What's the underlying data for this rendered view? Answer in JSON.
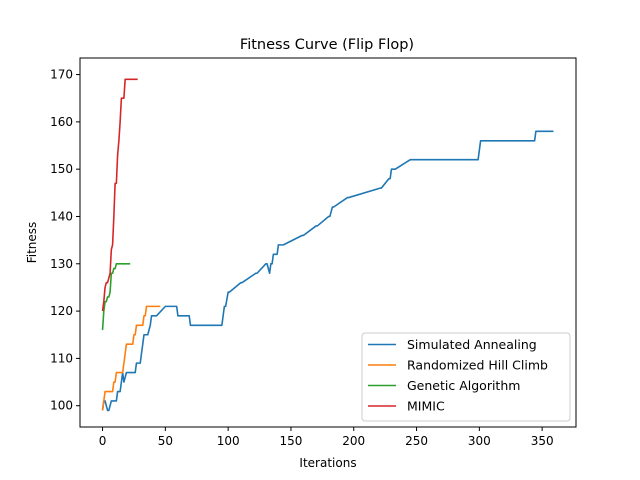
{
  "chart_data": {
    "type": "line",
    "title": "Fitness Curve (Flip Flop)",
    "xlabel": "Iterations",
    "ylabel": "Fitness",
    "xlim": [
      -17.95,
      376.95
    ],
    "ylim": [
      95.5,
      173.5
    ],
    "xticks": [
      0,
      50,
      100,
      150,
      200,
      250,
      300,
      350
    ],
    "yticks": [
      100,
      110,
      120,
      130,
      140,
      150,
      160,
      170
    ],
    "grid": false,
    "legend_position": "lower-right",
    "series": [
      {
        "name": "Simulated Annealing",
        "color": "#1f77b4",
        "x": [
          0,
          1,
          2,
          4,
          5,
          7,
          8,
          11,
          12,
          14,
          15,
          16,
          17,
          19,
          20,
          21,
          22,
          26,
          27,
          30,
          31,
          32,
          33,
          35,
          36,
          38,
          39,
          42,
          43,
          50,
          51,
          59,
          60,
          69,
          70,
          95,
          96,
          97,
          98,
          100,
          101,
          110,
          111,
          122,
          123,
          130,
          131,
          133,
          134,
          135,
          136,
          137,
          139,
          140,
          141,
          143,
          144,
          159,
          160,
          170,
          171,
          180,
          181,
          183,
          184,
          195,
          196,
          221,
          222,
          228,
          229,
          230,
          231,
          232,
          233,
          245,
          246,
          299,
          300,
          301,
          302,
          344,
          345,
          347,
          348,
          359
        ],
        "values": [
          99,
          101,
          101,
          99,
          99,
          101,
          101,
          101,
          103,
          103,
          105,
          107,
          105,
          107,
          107,
          107,
          107,
          107,
          109,
          109,
          111,
          113,
          115,
          115,
          115,
          117,
          119,
          119,
          119,
          121,
          121,
          121,
          119,
          119,
          117,
          117,
          119,
          121,
          121,
          124,
          124,
          126,
          126,
          128,
          128,
          130,
          130,
          128,
          130,
          130,
          132,
          132,
          132,
          134,
          134,
          134,
          134,
          136,
          136,
          138,
          138,
          140,
          140,
          142,
          142,
          144,
          144,
          146,
          146,
          148,
          148,
          150,
          150,
          150,
          150,
          152,
          152,
          152,
          154,
          156,
          156,
          156,
          158,
          158,
          158,
          158
        ]
      },
      {
        "name": "Randomized Hill Climb",
        "color": "#ff7f0e",
        "x": [
          0,
          1,
          2,
          8,
          9,
          10,
          11,
          16,
          17,
          18,
          19,
          24,
          25,
          26,
          27,
          32,
          33,
          34,
          35,
          46
        ],
        "values": [
          99,
          101,
          103,
          103,
          105,
          105,
          107,
          107,
          109,
          111,
          113,
          113,
          115,
          115,
          117,
          117,
          119,
          119,
          121,
          121
        ]
      },
      {
        "name": "Genetic Algorithm",
        "color": "#2ca02c",
        "x": [
          0,
          1,
          2,
          3,
          4,
          5,
          6,
          7,
          8,
          9,
          10,
          11,
          12,
          13,
          14,
          15,
          16,
          17,
          18,
          19,
          20,
          21,
          22
        ],
        "values": [
          116,
          120,
          122,
          122,
          123,
          123,
          124,
          128,
          128,
          129,
          129,
          130,
          130,
          130,
          130,
          130,
          130,
          130,
          130,
          130,
          130,
          130,
          130
        ]
      },
      {
        "name": "MIMIC",
        "color": "#d62728",
        "x": [
          0,
          1,
          2,
          3,
          4,
          5,
          6,
          7,
          8,
          9,
          10,
          11,
          12,
          13,
          14,
          15,
          16,
          17,
          18,
          19,
          20,
          21,
          22,
          23,
          24,
          25,
          26,
          27,
          28
        ],
        "values": [
          120,
          122,
          125,
          126,
          126,
          127,
          128,
          133,
          134,
          140,
          147,
          147,
          153,
          156,
          160,
          165,
          165,
          165,
          169,
          169,
          169,
          169,
          169,
          169,
          169,
          169,
          169,
          169,
          169
        ]
      }
    ]
  }
}
